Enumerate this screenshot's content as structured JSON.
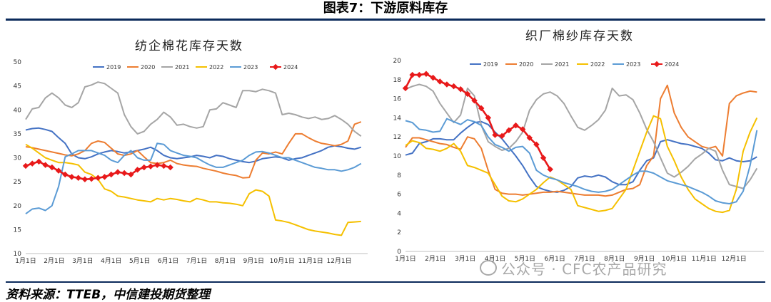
{
  "figure_title": "图表7：下游原料库存",
  "source": "资料来源：TTEB，中信建投期货整理",
  "watermark": "公众号 · CFC农产品研究",
  "chart_data": [
    {
      "type": "line",
      "title": "纺企棉花库存天数",
      "ylim": [
        10,
        50
      ],
      "yticks": [
        10,
        15,
        20,
        25,
        30,
        35,
        40,
        45,
        50
      ],
      "xticks": [
        "1月1日",
        "2月1日",
        "3月1日",
        "4月1日",
        "5月1日",
        "6月1日",
        "7月1日",
        "8月1日",
        "9月1日",
        "10月1日",
        "11月1日",
        "12月1日"
      ],
      "xmax": 52,
      "series": [
        {
          "name": "2019",
          "color": "#4472C4",
          "marker": false,
          "values": [
            35.8,
            36.1,
            36.2,
            35.9,
            35.5,
            34.2,
            33.0,
            30.8,
            30.0,
            29.8,
            30.2,
            30.8,
            31.2,
            31.5,
            31.3,
            31.0,
            31.2,
            31.5,
            31.8,
            32.2,
            31.5,
            30.5,
            30.0,
            29.8,
            30.0,
            30.2,
            30.5,
            30.3,
            30.0,
            30.5,
            30.3,
            29.8,
            29.5,
            29.2,
            29.0,
            29.3,
            29.8,
            30.0,
            30.2,
            30.0,
            29.5,
            29.8,
            30.0,
            30.5,
            31.0,
            31.5,
            32.2,
            32.5,
            32.3,
            32.0,
            31.8,
            32.2
          ]
        },
        {
          "name": "2020",
          "color": "#ED7D31",
          "marker": false,
          "values": [
            32.3,
            32.1,
            31.8,
            31.5,
            31.2,
            30.9,
            30.6,
            30.4,
            30.8,
            31.5,
            33.0,
            33.5,
            33.2,
            32.0,
            30.8,
            30.5,
            30.8,
            31.5,
            30.2,
            29.0,
            28.8,
            29.0,
            29.5,
            28.8,
            28.5,
            28.3,
            28.2,
            27.8,
            27.5,
            27.2,
            26.8,
            26.5,
            26.3,
            25.8,
            25.9,
            29.5,
            31.0,
            30.8,
            31.2,
            30.8,
            33.0,
            35.0,
            35.0,
            34.2,
            33.5,
            33.0,
            32.8,
            32.5,
            32.8,
            33.5,
            37.0,
            37.5
          ]
        },
        {
          "name": "2021",
          "color": "#A5A5A5",
          "marker": false,
          "values": [
            38.0,
            40.2,
            40.5,
            42.5,
            43.5,
            42.5,
            41.0,
            40.5,
            41.5,
            44.8,
            45.2,
            45.8,
            45.5,
            44.5,
            43.5,
            39.0,
            36.5,
            35.0,
            35.5,
            37.0,
            38.0,
            39.5,
            38.5,
            36.8,
            37.0,
            36.5,
            36.2,
            36.5,
            40.0,
            40.2,
            41.5,
            41.0,
            40.5,
            44.0,
            44.0,
            43.8,
            44.3,
            44.0,
            43.5,
            39.0,
            39.3,
            39.0,
            38.5,
            38.2,
            38.5,
            38.0,
            38.2,
            38.8,
            38.0,
            37.0,
            35.5,
            34.5
          ]
        },
        {
          "name": "2022",
          "color": "#F5C000",
          "marker": false,
          "values": [
            32.8,
            32.0,
            31.0,
            30.0,
            29.5,
            29.0,
            29.0,
            28.8,
            28.5,
            27.0,
            26.5,
            25.5,
            23.5,
            23.0,
            22.0,
            21.8,
            21.5,
            21.2,
            21.0,
            20.8,
            21.5,
            21.2,
            21.5,
            21.3,
            21.0,
            20.8,
            21.5,
            21.2,
            20.8,
            20.8,
            20.6,
            20.5,
            20.3,
            20.0,
            22.5,
            23.3,
            23.0,
            22.0,
            17.0,
            16.8,
            16.5,
            16.0,
            15.5,
            15.0,
            14.7,
            14.5,
            14.3,
            14.0,
            13.8,
            16.5,
            16.6,
            16.7
          ]
        },
        {
          "name": "2023",
          "color": "#5B9BD5",
          "marker": false,
          "values": [
            18.3,
            19.3,
            19.5,
            19.0,
            20.0,
            24.0,
            30.2,
            30.8,
            31.5,
            31.5,
            31.5,
            31.0,
            30.5,
            29.5,
            29.0,
            30.5,
            31.5,
            30.0,
            29.5,
            29.5,
            33.0,
            32.8,
            31.5,
            31.0,
            30.5,
            30.3,
            30.0,
            29.2,
            28.5,
            28.0,
            28.0,
            28.5,
            29.0,
            29.5,
            30.5,
            31.2,
            31.3,
            31.0,
            30.5,
            30.0,
            30.0,
            29.5,
            29.0,
            28.5,
            28.0,
            27.8,
            27.5,
            27.5,
            27.2,
            27.5,
            28.0,
            28.8
          ]
        },
        {
          "name": "2024",
          "color": "#E8191A",
          "marker": true,
          "values": [
            28.3,
            28.8,
            29.2,
            28.5,
            28.0,
            27.3,
            26.5,
            26.0,
            25.8,
            25.5,
            25.6,
            25.8,
            26.0,
            26.5,
            27.0,
            26.8,
            26.5,
            27.5,
            28.0,
            28.2,
            28.5,
            28.3,
            28.0
          ]
        }
      ]
    },
    {
      "type": "line",
      "title": "织厂棉纱库存天数",
      "ylim": [
        0,
        20
      ],
      "yticks": [
        0,
        2,
        4,
        6,
        8,
        10,
        12,
        14,
        16,
        18,
        20
      ],
      "xticks": [
        "1月1日",
        "2月1日",
        "3月1日",
        "4月1日",
        "5月1日",
        "6月1日",
        "7月1日",
        "8月1日",
        "9月1日",
        "10月1日",
        "11月1日",
        "12月1日"
      ],
      "xmax": 52,
      "series": [
        {
          "name": "2019",
          "color": "#4472C4",
          "marker": false,
          "values": [
            10.1,
            10.3,
            11.3,
            11.5,
            11.8,
            11.8,
            11.7,
            11.7,
            12.4,
            13.0,
            13.5,
            13.6,
            13.3,
            12.5,
            11.8,
            10.9,
            10.0,
            9.0,
            7.8,
            6.8,
            6.5,
            6.3,
            6.2,
            6.4,
            6.8,
            7.7,
            7.9,
            7.8,
            8.0,
            7.8,
            7.3,
            7.0,
            7.0,
            7.3,
            8.5,
            9.5,
            9.8,
            11.5,
            11.7,
            11.5,
            11.3,
            11.2,
            11.0,
            10.8,
            10.3,
            9.6,
            9.5,
            9.8,
            9.5,
            9.4,
            9.5,
            9.9
          ]
        },
        {
          "name": "2020",
          "color": "#ED7D31",
          "marker": false,
          "values": [
            10.9,
            11.9,
            11.9,
            11.7,
            11.5,
            11.3,
            11.2,
            10.9,
            10.7,
            12.0,
            11.8,
            10.8,
            8.5,
            6.5,
            6.1,
            6.0,
            6.0,
            5.9,
            6.0,
            6.1,
            6.2,
            6.2,
            6.3,
            6.2,
            6.1,
            6.0,
            5.9,
            5.9,
            5.9,
            5.8,
            5.9,
            6.2,
            6.5,
            6.6,
            7.0,
            9.0,
            10.0,
            16.0,
            17.4,
            14.5,
            13.0,
            12.0,
            11.5,
            11.0,
            10.8,
            11.0,
            10.0,
            15.5,
            16.3,
            16.6,
            16.8,
            16.7
          ]
        },
        {
          "name": "2021",
          "color": "#A5A5A5",
          "marker": false,
          "values": [
            17.0,
            17.3,
            17.5,
            17.3,
            16.8,
            15.5,
            14.5,
            13.5,
            14.3,
            17.1,
            16.3,
            13.2,
            11.5,
            11.0,
            10.6,
            10.8,
            11.5,
            12.5,
            14.8,
            15.9,
            16.5,
            16.7,
            16.3,
            15.5,
            14.2,
            13.0,
            12.7,
            13.2,
            13.8,
            14.8,
            17.1,
            16.3,
            16.4,
            15.9,
            14.5,
            12.8,
            11.5,
            9.8,
            8.2,
            7.8,
            8.3,
            8.9,
            9.7,
            10.2,
            10.8,
            10.5,
            8.5,
            7.0,
            6.8,
            6.6,
            7.5,
            8.7
          ]
        },
        {
          "name": "2022",
          "color": "#F5C000",
          "marker": false,
          "values": [
            11.1,
            11.6,
            11.4,
            10.8,
            10.7,
            10.5,
            10.8,
            11.3,
            10.5,
            9.0,
            8.8,
            8.5,
            8.2,
            7.0,
            5.8,
            5.3,
            5.2,
            5.5,
            6.0,
            6.5,
            7.2,
            7.8,
            7.5,
            7.0,
            6.5,
            4.8,
            4.6,
            4.4,
            4.2,
            4.3,
            4.5,
            5.5,
            6.5,
            8.5,
            10.5,
            12.5,
            14.2,
            13.9,
            11.0,
            9.5,
            7.8,
            6.5,
            5.5,
            5.0,
            4.5,
            4.2,
            4.1,
            4.3,
            6.5,
            10.5,
            12.5,
            14.0
          ]
        },
        {
          "name": "2023",
          "color": "#5B9BD5",
          "marker": false,
          "values": [
            13.7,
            13.5,
            12.8,
            12.7,
            12.5,
            12.6,
            13.9,
            13.6,
            13.3,
            13.8,
            13.6,
            13.2,
            12.0,
            11.2,
            10.9,
            10.5,
            10.9,
            11.0,
            10.3,
            8.5,
            8.0,
            7.7,
            7.5,
            7.2,
            7.0,
            6.8,
            6.5,
            6.3,
            6.2,
            6.3,
            6.5,
            7.0,
            7.5,
            8.0,
            8.4,
            8.4,
            8.2,
            7.8,
            7.4,
            7.2,
            7.0,
            6.8,
            6.5,
            6.2,
            5.8,
            5.3,
            5.1,
            5.0,
            5.2,
            6.3,
            9.0,
            12.7
          ]
        },
        {
          "name": "2024",
          "color": "#E8191A",
          "marker": true,
          "values": [
            17.1,
            18.5,
            18.5,
            18.6,
            18.2,
            17.8,
            17.5,
            17.3,
            17.0,
            16.5,
            15.8,
            15.0,
            14.0,
            12.2,
            12.1,
            12.7,
            13.2,
            12.8,
            11.9,
            11.2,
            9.8,
            8.6
          ]
        }
      ]
    }
  ]
}
